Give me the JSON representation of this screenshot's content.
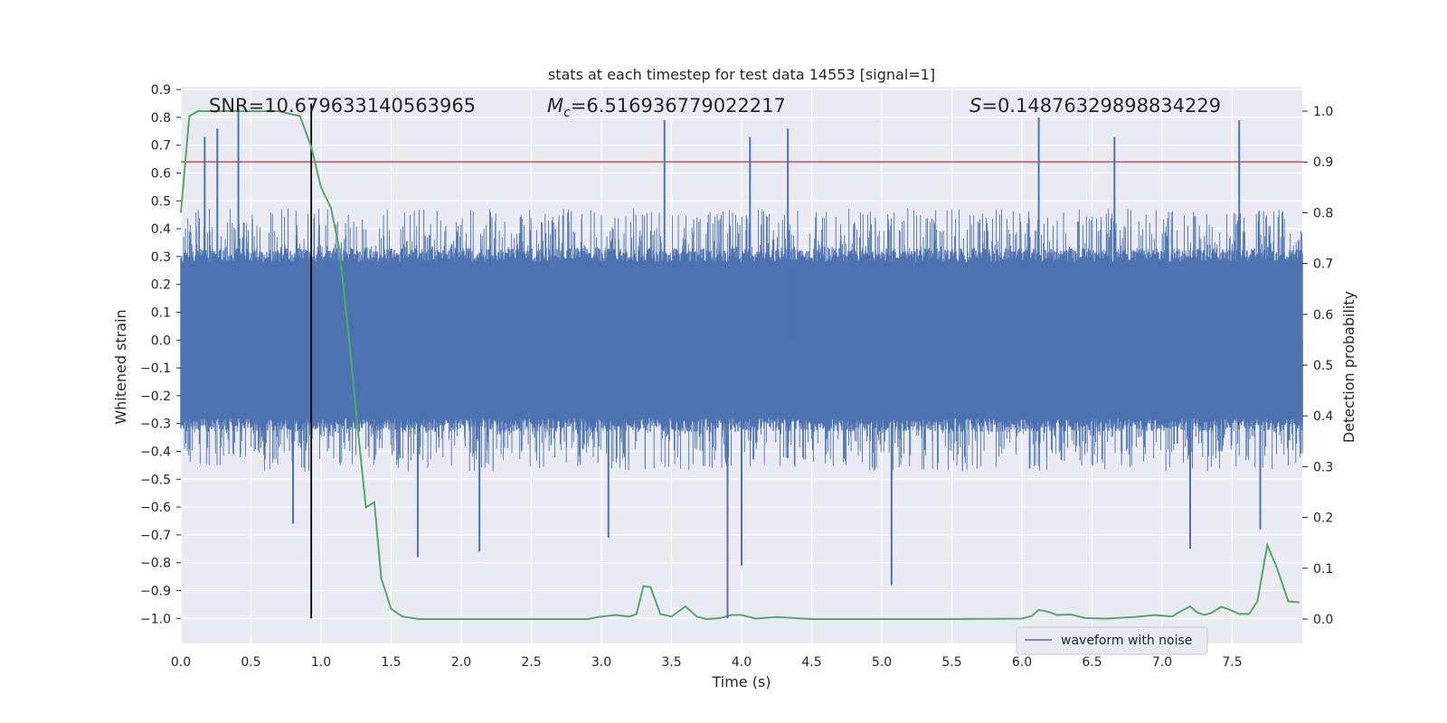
{
  "chart_data": {
    "type": "line",
    "title": "stats at each timestep for test data 14553 [signal=1]",
    "xlabel": "Time (s)",
    "ylabel_left": "Whitened strain",
    "ylabel_right": "Detection probability",
    "xlim": [
      0.0,
      8.0
    ],
    "ylim_left": [
      -1.09,
      0.91
    ],
    "ylim_right": [
      -0.048,
      1.048
    ],
    "x_ticks": [
      "0.0",
      "0.5",
      "1.0",
      "1.5",
      "2.0",
      "2.5",
      "3.0",
      "3.5",
      "4.0",
      "4.5",
      "5.0",
      "5.5",
      "6.0",
      "6.5",
      "7.0",
      "7.5"
    ],
    "y_left_ticks": [
      "0.9",
      "0.8",
      "0.7",
      "0.6",
      "0.5",
      "0.4",
      "0.3",
      "0.2",
      "0.1",
      "0.0",
      "−0.1",
      "−0.2",
      "−0.3",
      "−0.4",
      "−0.5",
      "−0.6",
      "−0.7",
      "−0.8",
      "−0.9",
      "−1.0"
    ],
    "y_right_ticks": [
      "0.0",
      "0.1",
      "0.2",
      "0.3",
      "0.4",
      "0.5",
      "0.6",
      "0.7",
      "0.8",
      "0.9",
      "1.0"
    ],
    "grid": true,
    "legend": {
      "label": "waveform with noise",
      "location": "lower-right"
    },
    "annotations": {
      "snr": "SNR=10.679633140563965",
      "mc_symbol": "M",
      "mc_sub": "c",
      "mc_value": "=6.516936779022217",
      "s_symbol": "S",
      "s_value": "=0.14876329898834229"
    },
    "threshold": {
      "value_right_axis": 0.9,
      "color": "#c44e52"
    },
    "event_marker": {
      "time": 0.93,
      "y_range": [
        -1.0,
        0.85
      ],
      "color": "#000000"
    },
    "series": [
      {
        "name": "waveform with noise",
        "axis": "left",
        "color": "#4c72b0",
        "style": "dense-noise",
        "core_amplitude": 0.28,
        "typical_peak_amplitude": 0.45,
        "peaks": [
          {
            "x": 0.41,
            "y": 0.83
          },
          {
            "x": 0.17,
            "y": 0.73
          },
          {
            "x": 0.26,
            "y": 0.76
          },
          {
            "x": 3.45,
            "y": 0.79
          },
          {
            "x": 4.06,
            "y": 0.73
          },
          {
            "x": 4.33,
            "y": 0.76
          },
          {
            "x": 6.12,
            "y": 0.8
          },
          {
            "x": 6.66,
            "y": 0.73
          },
          {
            "x": 7.55,
            "y": 0.79
          },
          {
            "x": 3.9,
            "y": -1.0
          },
          {
            "x": 4.0,
            "y": -0.81
          },
          {
            "x": 5.07,
            "y": -0.88
          },
          {
            "x": 7.2,
            "y": -0.75
          },
          {
            "x": 1.69,
            "y": -0.78
          },
          {
            "x": 2.13,
            "y": -0.76
          },
          {
            "x": 0.8,
            "y": -0.66
          },
          {
            "x": 3.05,
            "y": -0.71
          },
          {
            "x": 7.7,
            "y": -0.68
          }
        ]
      },
      {
        "name": "detection probability",
        "axis": "right",
        "color": "#55a868",
        "x": [
          0.0,
          0.06,
          0.12,
          0.2,
          0.3,
          0.5,
          0.7,
          0.85,
          0.93,
          1.0,
          1.07,
          1.13,
          1.2,
          1.26,
          1.32,
          1.38,
          1.43,
          1.5,
          1.58,
          1.7,
          2.0,
          2.5,
          2.9,
          3.0,
          3.1,
          3.2,
          3.25,
          3.3,
          3.35,
          3.42,
          3.5,
          3.6,
          3.68,
          3.75,
          3.85,
          3.93,
          4.0,
          4.1,
          4.25,
          4.5,
          5.0,
          5.5,
          6.0,
          6.07,
          6.12,
          6.18,
          6.25,
          6.35,
          6.45,
          6.6,
          6.8,
          6.95,
          7.07,
          7.13,
          7.2,
          7.25,
          7.3,
          7.35,
          7.42,
          7.47,
          7.55,
          7.62,
          7.68,
          7.75,
          7.82,
          7.9,
          7.98
        ],
        "y": [
          0.8,
          0.99,
          1.0,
          1.0,
          1.0,
          1.0,
          1.0,
          0.99,
          0.93,
          0.85,
          0.81,
          0.73,
          0.55,
          0.38,
          0.22,
          0.23,
          0.08,
          0.02,
          0.005,
          0.0,
          0.0,
          0.0,
          0.0,
          0.005,
          0.008,
          0.005,
          0.01,
          0.065,
          0.063,
          0.01,
          0.005,
          0.025,
          0.005,
          0.0,
          0.002,
          0.008,
          0.008,
          0.001,
          0.004,
          0.0,
          0.0,
          0.0,
          0.001,
          0.006,
          0.018,
          0.015,
          0.008,
          0.009,
          0.002,
          0.001,
          0.004,
          0.008,
          0.005,
          0.015,
          0.025,
          0.013,
          0.008,
          0.012,
          0.024,
          0.02,
          0.01,
          0.01,
          0.035,
          0.146,
          0.1,
          0.035,
          0.033
        ]
      }
    ]
  }
}
